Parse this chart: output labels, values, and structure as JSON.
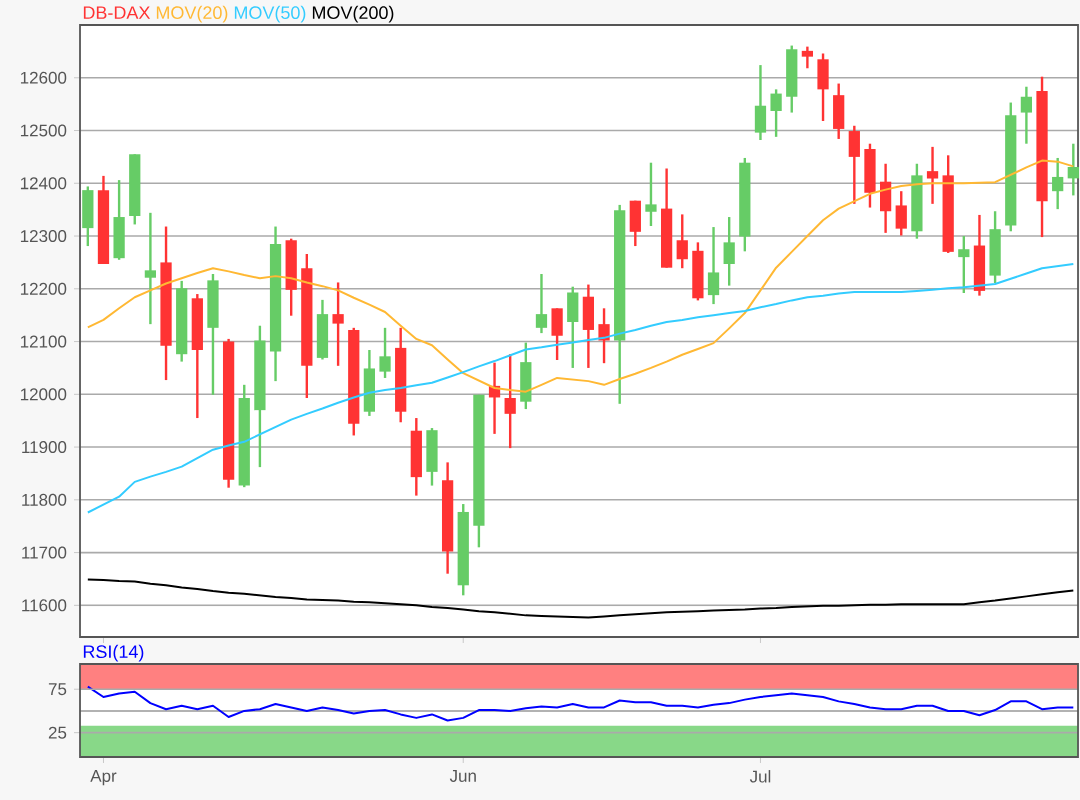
{
  "chart_data": [
    {
      "type": "candlestick",
      "ylim": [
        11540,
        12700
      ],
      "yticks": [
        11600,
        11700,
        11800,
        11900,
        12000,
        12100,
        12200,
        12300,
        12400,
        12500,
        12600
      ],
      "grid": "y",
      "legend": "top left",
      "tick_labels": "y",
      "series": [
        {
          "name": "DB-DAX",
          "color": "#ff3333",
          "ohlc": [
            [
              12315,
              12394,
              12281,
              12387
            ],
            [
              12387,
              12414,
              12247,
              12247
            ],
            [
              12258,
              12406,
              12255,
              12336
            ],
            [
              12338,
              12455,
              12322,
              12455
            ],
            [
              12221,
              12344,
              12133,
              12235
            ],
            [
              12250,
              12318,
              12027,
              12092
            ],
            [
              12076,
              12215,
              12062,
              12201
            ],
            [
              12182,
              12190,
              11955,
              12084
            ],
            [
              12126,
              12228,
              11999,
              12216
            ],
            [
              12100,
              12105,
              11823,
              11838
            ],
            [
              11827,
              12018,
              11824,
              11993
            ],
            [
              11970,
              12130,
              11862,
              12102
            ],
            [
              12081,
              12318,
              12025,
              12285
            ],
            [
              12292,
              12295,
              12149,
              12198
            ],
            [
              12239,
              12266,
              11993,
              12054
            ],
            [
              12069,
              12179,
              12066,
              12152
            ],
            [
              12152,
              12212,
              12054,
              12134
            ],
            [
              12122,
              12126,
              11922,
              11944
            ],
            [
              11967,
              12084,
              11959,
              12049
            ],
            [
              12043,
              12126,
              12031,
              12072
            ],
            [
              12088,
              12126,
              11947,
              11967
            ],
            [
              11931,
              11955,
              11808,
              11843
            ],
            [
              11853,
              11936,
              11827,
              11932
            ],
            [
              11837,
              11871,
              11660,
              11702
            ],
            [
              11638,
              11792,
              11619,
              11777
            ],
            [
              11751,
              11999,
              11710,
              11999
            ],
            [
              12016,
              12060,
              11925,
              11994
            ],
            [
              11993,
              12076,
              11898,
              11963
            ],
            [
              11986,
              12098,
              11972,
              12061
            ],
            [
              12126,
              12228,
              12116,
              12152
            ],
            [
              12163,
              12163,
              12065,
              12111
            ],
            [
              12137,
              12204,
              12050,
              12193
            ],
            [
              12185,
              12208,
              12050,
              12122
            ],
            [
              12133,
              12163,
              12059,
              12102
            ],
            [
              12102,
              12359,
              11982,
              12349
            ],
            [
              12367,
              12367,
              12281,
              12308
            ],
            [
              12346,
              12439,
              12319,
              12360
            ],
            [
              12352,
              12428,
              12240,
              12240
            ],
            [
              12292,
              12341,
              12239,
              12256
            ],
            [
              12272,
              12288,
              12178,
              12182
            ],
            [
              12188,
              12317,
              12171,
              12231
            ],
            [
              12247,
              12336,
              12206,
              12288
            ],
            [
              12299,
              12448,
              12271,
              12439
            ],
            [
              12496,
              12624,
              12482,
              12547
            ],
            [
              12537,
              12578,
              12488,
              12570
            ],
            [
              12564,
              12661,
              12534,
              12654
            ],
            [
              12651,
              12659,
              12618,
              12640
            ],
            [
              12635,
              12646,
              12518,
              12578
            ],
            [
              12567,
              12589,
              12484,
              12503
            ],
            [
              12499,
              12509,
              12361,
              12450
            ],
            [
              12465,
              12475,
              12354,
              12382
            ],
            [
              12403,
              12437,
              12306,
              12347
            ],
            [
              12358,
              12385,
              12301,
              12314
            ],
            [
              12309,
              12437,
              12295,
              12415
            ],
            [
              12423,
              12469,
              12361,
              12409
            ],
            [
              12415,
              12453,
              12268,
              12270
            ],
            [
              12260,
              12300,
              12192,
              12275
            ],
            [
              12282,
              12340,
              12187,
              12196
            ],
            [
              12225,
              12347,
              12211,
              12313
            ],
            [
              12320,
              12553,
              12309,
              12529
            ],
            [
              12534,
              12583,
              12475,
              12564
            ],
            [
              12575,
              12602,
              12298,
              12366
            ],
            [
              12385,
              12448,
              12351,
              12412
            ],
            [
              12409,
              12475,
              12377,
              12431
            ]
          ],
          "colors": [
            "#66cc66",
            "#ff3333",
            "#66cc66",
            "#66cc66",
            "#66cc66",
            "#ff3333",
            "#66cc66",
            "#ff3333",
            "#66cc66",
            "#ff3333",
            "#66cc66",
            "#66cc66",
            "#66cc66",
            "#ff3333",
            "#ff3333",
            "#66cc66",
            "#ff3333",
            "#ff3333",
            "#66cc66",
            "#66cc66",
            "#ff3333",
            "#ff3333",
            "#66cc66",
            "#ff3333",
            "#66cc66",
            "#66cc66",
            "#ff3333",
            "#ff3333",
            "#66cc66",
            "#66cc66",
            "#ff3333",
            "#66cc66",
            "#ff3333",
            "#ff3333",
            "#66cc66",
            "#ff3333",
            "#66cc66",
            "#ff3333",
            "#ff3333",
            "#ff3333",
            "#66cc66",
            "#66cc66",
            "#66cc66",
            "#66cc66",
            "#66cc66",
            "#66cc66",
            "#ff3333",
            "#ff3333",
            "#ff3333",
            "#ff3333",
            "#ff3333",
            "#ff3333",
            "#ff3333",
            "#66cc66",
            "#ff3333",
            "#ff3333",
            "#66cc66",
            "#ff3333",
            "#66cc66",
            "#66cc66",
            "#66cc66",
            "#ff3333",
            "#66cc66",
            "#66cc66"
          ]
        },
        {
          "name": "MOV(20)",
          "type": "line",
          "color": "#ffb833",
          "values": [
            12127,
            12141,
            12163,
            12184,
            12197,
            12210,
            12220,
            12230,
            12239,
            12233,
            12226,
            12220,
            12224,
            12220,
            12212,
            12205,
            12197,
            12183,
            12170,
            12156,
            12130,
            12105,
            12093,
            12066,
            12040,
            12026,
            12012,
            12008,
            12005,
            12018,
            12031,
            12028,
            12025,
            12018,
            12029,
            12039,
            12050,
            12062,
            12075,
            12086,
            12097,
            12125,
            12154,
            12197,
            12240,
            12270,
            12300,
            12330,
            12352,
            12366,
            12380,
            12388,
            12395,
            12398,
            12400,
            12400,
            12400,
            12401,
            12402,
            12416,
            12430,
            12443,
            12441,
            12432
          ]
        },
        {
          "name": "MOV(50)",
          "type": "line",
          "color": "#33ccff",
          "values": [
            11776,
            11791,
            11806,
            11834,
            11844,
            11853,
            11863,
            11879,
            11895,
            11903,
            11910,
            11924,
            11938,
            11952,
            11963,
            11973,
            11984,
            11994,
            12003,
            12008,
            12012,
            12017,
            12022,
            12032,
            12042,
            12053,
            12063,
            12074,
            12085,
            12089,
            12094,
            12098,
            12103,
            12107,
            12115,
            12122,
            12130,
            12137,
            12141,
            12146,
            12150,
            12154,
            12158,
            12165,
            12171,
            12178,
            12184,
            12187,
            12191,
            12194,
            12194,
            12194,
            12194,
            12196,
            12198,
            12201,
            12203,
            12206,
            12209,
            12219,
            12229,
            12239,
            12243,
            12247
          ]
        },
        {
          "name": "MOV(200)",
          "type": "line",
          "color": "#000000",
          "values": [
            11649,
            11648,
            11646,
            11645,
            11641,
            11638,
            11634,
            11631,
            11627,
            11624,
            11622,
            11619,
            11616,
            11614,
            11611,
            11610,
            11609,
            11607,
            11606,
            11604,
            11602,
            11600,
            11597,
            11595,
            11592,
            11589,
            11587,
            11584,
            11581,
            11580,
            11579,
            11578,
            11577,
            11579,
            11581,
            11583,
            11585,
            11587,
            11588,
            11589,
            11590,
            11591,
            11592,
            11594,
            11595,
            11597,
            11598,
            11599,
            11599,
            11600,
            11601,
            11601,
            11602,
            11602,
            11602,
            11602,
            11602,
            11606,
            11609,
            11613,
            11617,
            11621,
            11625,
            11628
          ]
        }
      ]
    },
    {
      "type": "line",
      "categories": [
        null,
        "Apr",
        null,
        null,
        null,
        null,
        null,
        null,
        null,
        null,
        null,
        null,
        null,
        null,
        null,
        null,
        null,
        null,
        null,
        null,
        null,
        null,
        null,
        null,
        "Jun",
        null,
        null,
        null,
        null,
        null,
        null,
        null,
        null,
        null,
        null,
        null,
        null,
        null,
        null,
        null,
        null,
        null,
        null,
        "Jul",
        null,
        null,
        null,
        null,
        null,
        null,
        null,
        null,
        null,
        null,
        null,
        null,
        null,
        null,
        null,
        null,
        null,
        null,
        null,
        null
      ],
      "ylim": [
        -3,
        104
      ],
      "yticks": [
        25,
        75
      ],
      "grid": "y",
      "legend": "top left",
      "bands": [
        {
          "axis": "y",
          "from": 75,
          "to": 104,
          "color": "#ff8080"
        },
        {
          "axis": "y",
          "from": -3,
          "to": 33,
          "color": "#88d888"
        }
      ],
      "ref_lines": [
        {
          "axis": "y",
          "value": 50,
          "color": "#999999"
        }
      ],
      "series": [
        {
          "name": "RSI(14)",
          "color": "#0000ff",
          "values": [
            78,
            66,
            70,
            72,
            59,
            52,
            56,
            52,
            56,
            43,
            50,
            52,
            58,
            54,
            50,
            54,
            51,
            47,
            50,
            51,
            46,
            42,
            46,
            39,
            42,
            51,
            51,
            50,
            53,
            55,
            54,
            58,
            54,
            54,
            62,
            60,
            60,
            56,
            56,
            54,
            57,
            59,
            63,
            66,
            68,
            70,
            68,
            66,
            61,
            58,
            54,
            52,
            52,
            56,
            56,
            50,
            50,
            45,
            51,
            61,
            61,
            52,
            54,
            54
          ]
        }
      ]
    }
  ]
}
